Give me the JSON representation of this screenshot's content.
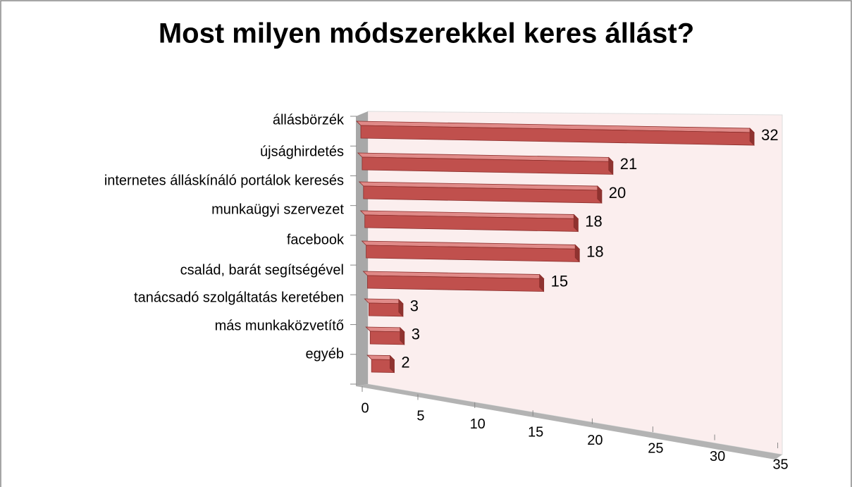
{
  "chart_data": {
    "type": "bar",
    "orientation": "horizontal",
    "three_d": true,
    "title": "Most milyen módszerekkel keres állást?",
    "categories": [
      "állásbörzék",
      "újsághirdetés",
      "internetes álláskínáló portálok keresés",
      "munkaügyi szervezet",
      "facebook",
      "család, barát segítségével",
      "tanácsadó szolgáltatás keretében",
      "más munkaközvetítő",
      "egyéb"
    ],
    "values": [
      32,
      21,
      20,
      18,
      18,
      15,
      3,
      3,
      2
    ],
    "color": "#c0504d",
    "xlim": [
      0,
      35
    ],
    "xticks": [
      0,
      5,
      10,
      15,
      20,
      25,
      30,
      35
    ]
  }
}
